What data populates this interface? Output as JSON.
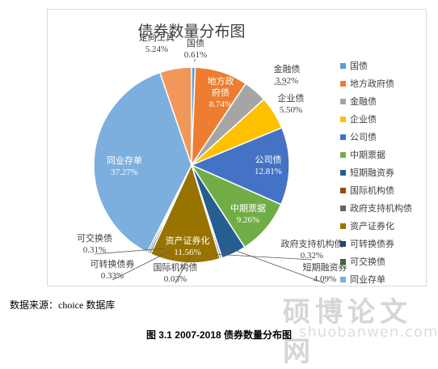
{
  "chart_data": {
    "type": "pie",
    "title": "债券数量分布图",
    "legend_position": "right",
    "slices": [
      {
        "name": "国债",
        "value": 0.61,
        "label": "0.61%",
        "color": "#5b9bd5"
      },
      {
        "name": "地方政府债",
        "value": 8.74,
        "label": "8.74%",
        "color": "#ed7d31"
      },
      {
        "name": "金融债",
        "value": 3.92,
        "label": "3.92%",
        "color": "#a5a5a5"
      },
      {
        "name": "企业债",
        "value": 5.5,
        "label": "5.50%",
        "color": "#ffc000"
      },
      {
        "name": "公司债",
        "value": 12.81,
        "label": "12.81%",
        "color": "#4472c4"
      },
      {
        "name": "中期票据",
        "value": 9.26,
        "label": "9.26%",
        "color": "#70ad47"
      },
      {
        "name": "短期融资券",
        "value": 4.09,
        "label": "4.09%",
        "color": "#255e91"
      },
      {
        "name": "国际机构债",
        "value": 0.03,
        "label": "0.03%",
        "color": "#9e480e"
      },
      {
        "name": "政府支持机构债",
        "value": 0.32,
        "label": "0.32%",
        "color": "#636363"
      },
      {
        "name": "资产证券化",
        "value": 11.56,
        "label": "11.56%",
        "color": "#997300"
      },
      {
        "name": "可转换债券",
        "value": 0.33,
        "label": "0.33%",
        "color": "#264478"
      },
      {
        "name": "可交换债",
        "value": 0.31,
        "label": "0.31%",
        "color": "#43682b"
      },
      {
        "name": "同业存单",
        "value": 37.27,
        "label": "37.27%",
        "color": "#7cafdd"
      },
      {
        "name": "定向工具",
        "value": 5.24,
        "label": "5.24%",
        "color": "#f1975a"
      }
    ]
  },
  "source_text": "数据来源：choice 数据库",
  "caption": "图 3.1 2007-2018 债券数量分布图",
  "watermark": "硕博论文网",
  "watermark_url": "shuobanwen.com"
}
